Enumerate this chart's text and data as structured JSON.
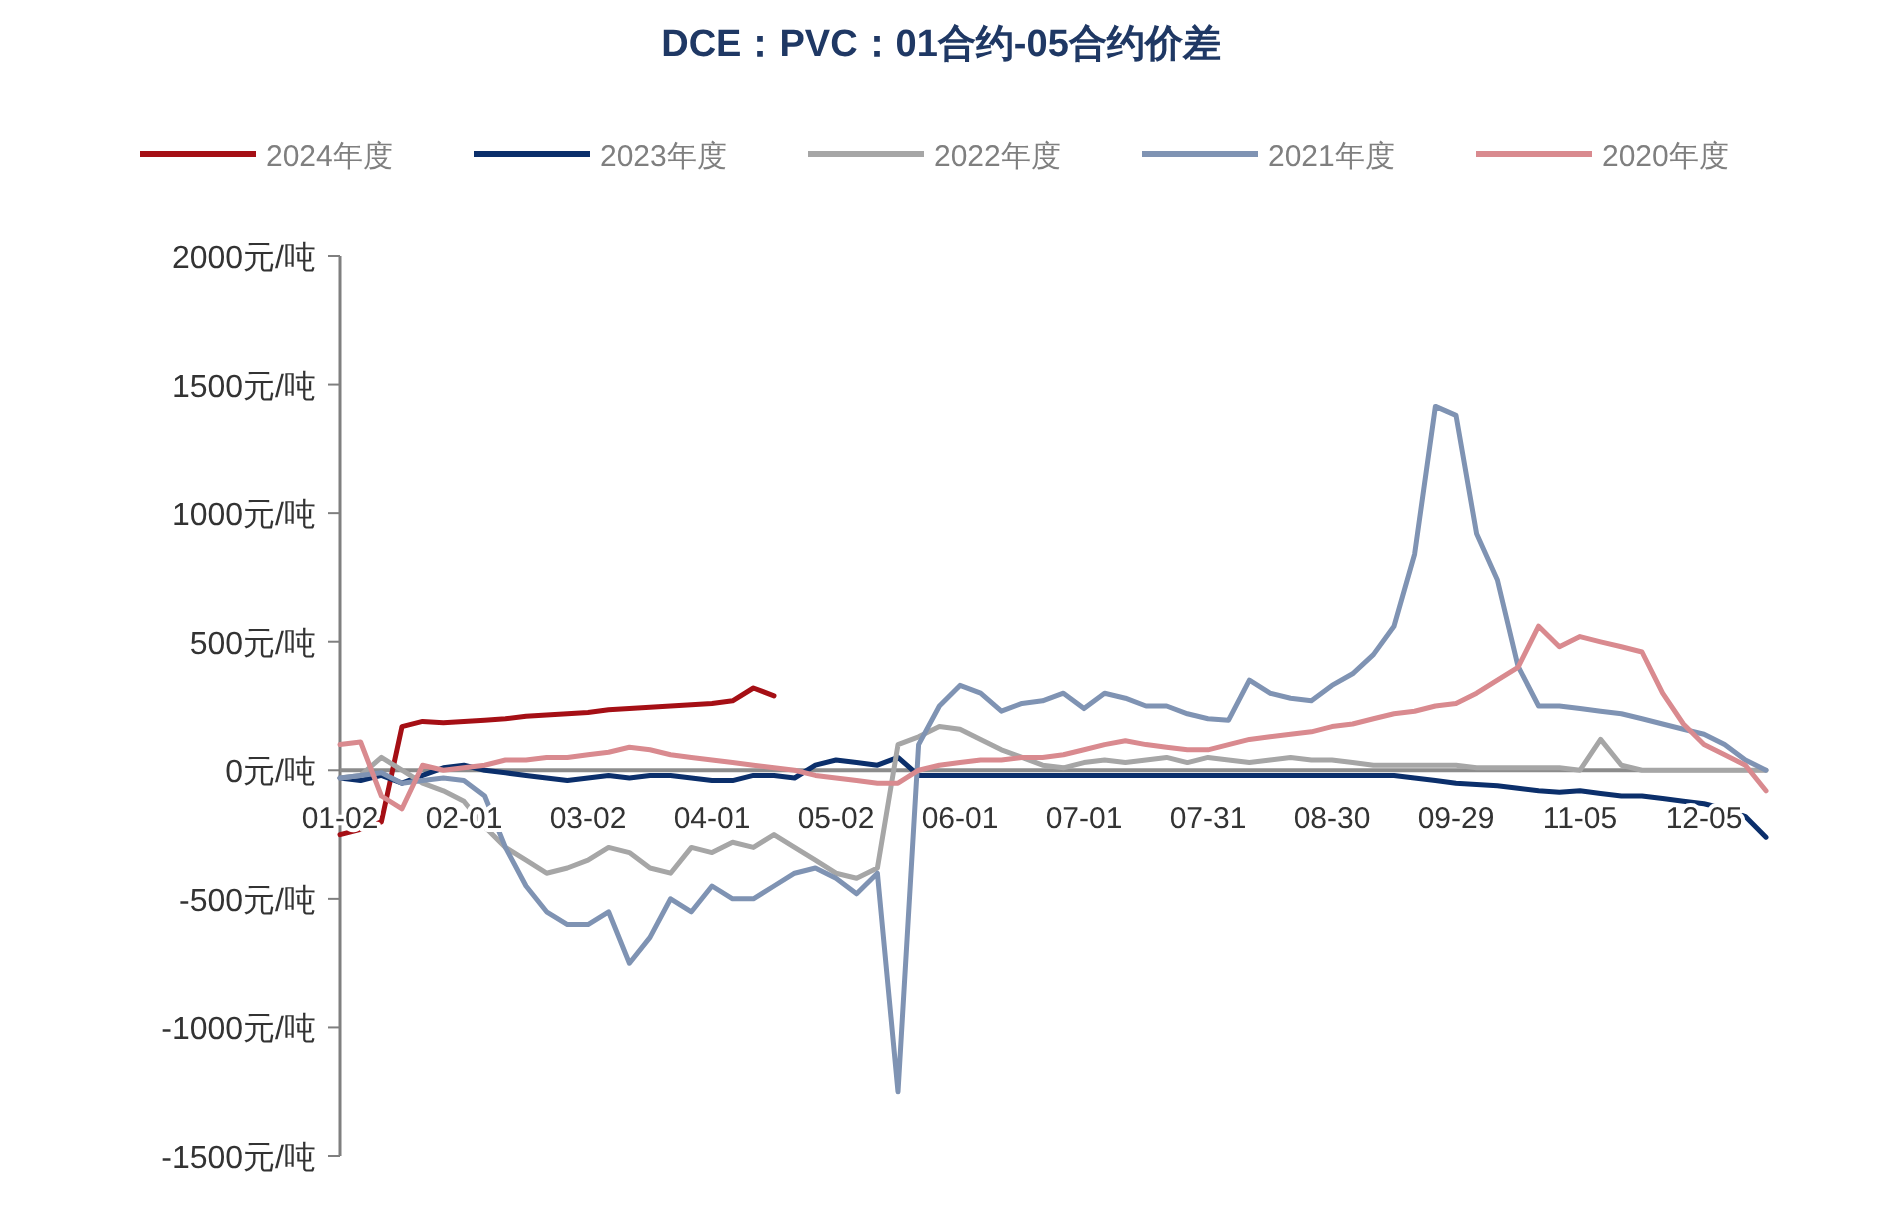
{
  "chart_data": {
    "type": "line",
    "title": "DCE：PVC：01合约-05合约价差",
    "categories": [
      "01-02",
      null,
      null,
      null,
      null,
      null,
      "02-01",
      null,
      null,
      null,
      null,
      null,
      "03-02",
      null,
      null,
      null,
      null,
      null,
      "04-01",
      null,
      null,
      null,
      null,
      null,
      "05-02",
      null,
      null,
      null,
      null,
      null,
      "06-01",
      null,
      null,
      null,
      null,
      null,
      "07-01",
      null,
      null,
      null,
      null,
      null,
      "07-31",
      null,
      null,
      null,
      null,
      null,
      "08-30",
      null,
      null,
      null,
      null,
      null,
      "09-29",
      null,
      null,
      null,
      null,
      null,
      "11-05",
      null,
      null,
      null,
      null,
      null,
      "12-05",
      null,
      null,
      null
    ],
    "ylim": [
      -1500,
      2000
    ],
    "yticks": [
      {
        "value": -1500,
        "label": "-1500元/吨"
      },
      {
        "value": -1000,
        "label": "-1000元/吨"
      },
      {
        "value": -500,
        "label": "-500元/吨"
      },
      {
        "value": 0,
        "label": "0元/吨"
      },
      {
        "value": 500,
        "label": "500元/吨"
      },
      {
        "value": 1000,
        "label": "1000元/吨"
      },
      {
        "value": 1500,
        "label": "1500元/吨"
      },
      {
        "value": 2000,
        "label": "2000元/吨"
      }
    ],
    "legend": "top",
    "grid": false,
    "marker": "none",
    "line_style": "solid",
    "series": [
      {
        "name": "2024年度",
        "color": "#a50f15",
        "values": [
          -250,
          -230,
          -200,
          170,
          190,
          185,
          190,
          195,
          200,
          210,
          215,
          220,
          225,
          235,
          240,
          245,
          250,
          255,
          260,
          270,
          320,
          290,
          null,
          null,
          null,
          null,
          null,
          null,
          null,
          null,
          null,
          null,
          null,
          null,
          null,
          null,
          null,
          null,
          null,
          null,
          null,
          null,
          null,
          null,
          null,
          null,
          null,
          null,
          null,
          null,
          null,
          null,
          null,
          null,
          null,
          null,
          null,
          null,
          null,
          null,
          null,
          null,
          null,
          null,
          null,
          null,
          null,
          null,
          null,
          null
        ]
      },
      {
        "name": "2023年度",
        "color": "#0b2f6b",
        "values": [
          -30,
          -40,
          -20,
          -50,
          -20,
          10,
          20,
          0,
          -10,
          -20,
          -30,
          -40,
          -30,
          -20,
          -30,
          -20,
          -20,
          -30,
          -40,
          -40,
          -20,
          -20,
          -30,
          20,
          40,
          30,
          20,
          50,
          -20,
          -20,
          -20,
          -20,
          -20,
          -20,
          -20,
          -20,
          -20,
          -20,
          -20,
          -20,
          -20,
          -20,
          -20,
          -20,
          -20,
          -20,
          -20,
          -20,
          -20,
          -20,
          -20,
          -20,
          -30,
          -40,
          -50,
          -55,
          -60,
          -70,
          -80,
          -85,
          -80,
          -90,
          -100,
          -100,
          -110,
          -120,
          -130,
          -150,
          -180,
          -260
        ]
      },
      {
        "name": "2022年度",
        "color": "#a6a6a6",
        "values": [
          -30,
          -20,
          50,
          0,
          -50,
          -80,
          -120,
          -220,
          -300,
          -350,
          -400,
          -380,
          -350,
          -300,
          -320,
          -380,
          -400,
          -300,
          -320,
          -280,
          -300,
          -250,
          -300,
          -350,
          -400,
          -420,
          -380,
          100,
          130,
          170,
          160,
          120,
          80,
          50,
          20,
          10,
          30,
          40,
          30,
          40,
          50,
          30,
          50,
          40,
          30,
          40,
          50,
          40,
          40,
          30,
          20,
          20,
          20,
          20,
          20,
          10,
          10,
          10,
          10,
          10,
          0,
          120,
          20,
          0,
          0,
          0,
          0,
          0,
          0,
          0
        ]
      },
      {
        "name": "2021年度",
        "color": "#7f93b3",
        "values": [
          -30,
          -20,
          -10,
          -50,
          -40,
          -30,
          -40,
          -100,
          -300,
          -450,
          -550,
          -600,
          -600,
          -550,
          -750,
          -650,
          -500,
          -550,
          -450,
          -500,
          -500,
          -450,
          -400,
          -380,
          -420,
          -480,
          -400,
          -1250,
          100,
          250,
          330,
          300,
          230,
          260,
          270,
          300,
          240,
          300,
          280,
          250,
          250,
          220,
          200,
          195,
          350,
          300,
          280,
          270,
          330,
          375,
          450,
          560,
          840,
          1415,
          1380,
          920,
          740,
          405,
          250,
          250,
          240,
          230,
          220,
          200,
          180,
          160,
          140,
          100,
          40,
          0
        ]
      },
      {
        "name": "2020年度",
        "color": "#d98a8f",
        "values": [
          100,
          110,
          -100,
          -150,
          20,
          0,
          10,
          20,
          40,
          40,
          50,
          50,
          60,
          70,
          90,
          80,
          60,
          50,
          40,
          30,
          20,
          10,
          0,
          -20,
          -30,
          -40,
          -50,
          -50,
          0,
          20,
          30,
          40,
          40,
          50,
          50,
          60,
          80,
          100,
          115,
          100,
          90,
          80,
          80,
          100,
          120,
          130,
          140,
          150,
          170,
          180,
          200,
          220,
          230,
          250,
          260,
          300,
          350,
          400,
          560,
          480,
          520,
          500,
          480,
          460,
          300,
          180,
          100,
          60,
          20,
          -80
        ]
      }
    ]
  }
}
